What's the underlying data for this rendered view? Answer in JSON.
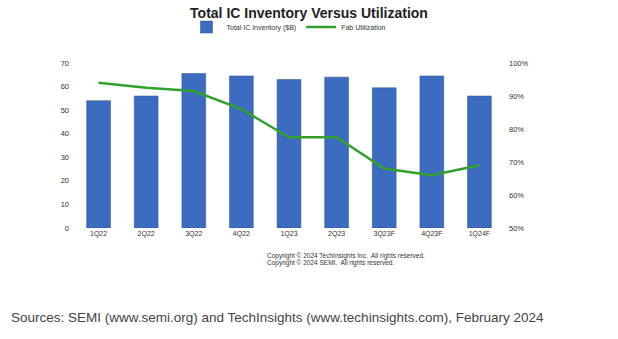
{
  "chart_data": {
    "type": "bar",
    "title": "Total IC Inventory Versus Utilization",
    "categories": [
      "1Q22",
      "2Q22",
      "3Q22",
      "4Q22",
      "1Q23",
      "2Q23",
      "3Q23F",
      "4Q23F",
      "1Q24F"
    ],
    "series": [
      {
        "name": "Total IC Inventory ($B)",
        "type": "bar",
        "color": "#3b6cc0",
        "values": [
          54,
          56,
          65.5,
          64.5,
          63,
          64,
          59.5,
          64.5,
          56
        ]
      },
      {
        "name": "Fab Utilization",
        "type": "line",
        "axis": "y2",
        "color": "#33a02c",
        "values": [
          94,
          92.5,
          91.5,
          86,
          77.5,
          77.5,
          68,
          66,
          69
        ]
      }
    ],
    "ylim": [
      0,
      70
    ],
    "yticks": [
      0,
      10,
      20,
      30,
      40,
      50,
      60,
      70
    ],
    "y2lim": [
      50,
      100
    ],
    "y2ticks": [
      {
        "value": 50,
        "label": "50%"
      },
      {
        "value": 60,
        "label": "60%"
      },
      {
        "value": 70,
        "label": "70%"
      },
      {
        "value": 80,
        "label": "80%"
      },
      {
        "value": 90,
        "label": "90%"
      },
      {
        "value": 100,
        "label": "100%"
      }
    ],
    "grid": false,
    "legend": "top",
    "annotations": [
      "Copyright © 2024 TechInsights Inc.  All rights reserved.",
      "Copyright © 2024 SEMI.  All rights reserved.",
      "Sources: SEMI (www.semi.org) and TechInsights (www.techinsights.com), February 2024"
    ]
  }
}
